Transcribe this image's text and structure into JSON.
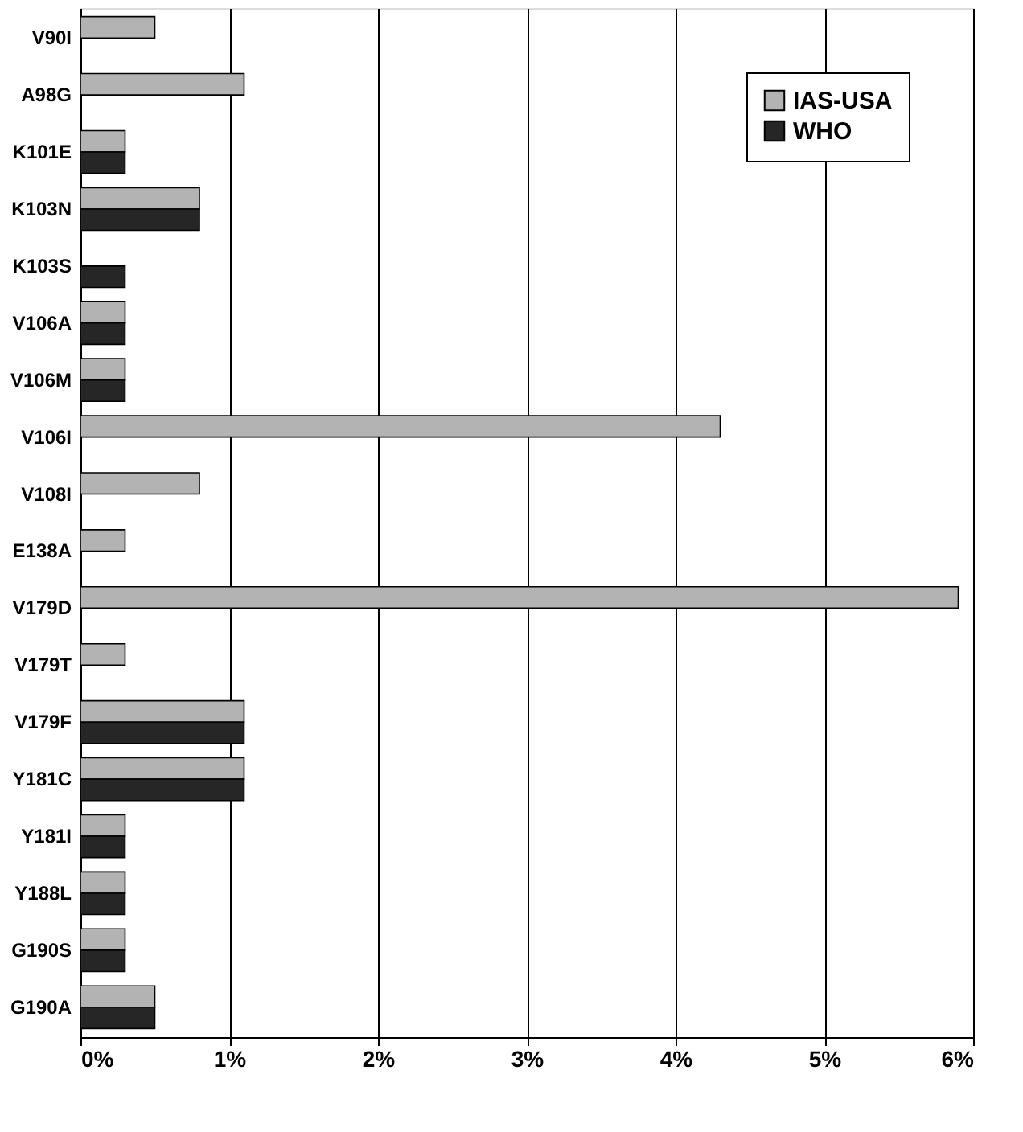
{
  "chart_data": {
    "type": "bar",
    "orientation": "horizontal",
    "categories": [
      "V90I",
      "A98G",
      "K101E",
      "K103N",
      "K103S",
      "V106A",
      "V106M",
      "V106I",
      "V108I",
      "E138A",
      "V179D",
      "V179T",
      "V179F",
      "Y181C",
      "Y181I",
      "Y188L",
      "G190S",
      "G190A"
    ],
    "series": [
      {
        "name": "IAS-USA",
        "color": "#b3b3b3",
        "values": [
          0.5,
          1.1,
          0.3,
          0.8,
          null,
          0.3,
          0.3,
          4.3,
          0.8,
          0.3,
          5.9,
          0.3,
          1.1,
          1.1,
          0.3,
          0.3,
          0.3,
          0.5
        ]
      },
      {
        "name": "WHO",
        "color": "#262626",
        "values": [
          null,
          null,
          0.3,
          0.8,
          0.3,
          0.3,
          0.3,
          null,
          null,
          null,
          null,
          null,
          1.1,
          1.1,
          0.3,
          0.3,
          0.3,
          0.5
        ]
      }
    ],
    "xlim": [
      0,
      6
    ],
    "xticks": [
      {
        "value": 0,
        "label": "0%"
      },
      {
        "value": 1,
        "label": "1%"
      },
      {
        "value": 2,
        "label": "2%"
      },
      {
        "value": 3,
        "label": "3%"
      },
      {
        "value": 4,
        "label": "4%"
      },
      {
        "value": 5,
        "label": "5%"
      },
      {
        "value": 6,
        "label": "6%"
      }
    ],
    "grid": "x",
    "legend": "top right"
  }
}
